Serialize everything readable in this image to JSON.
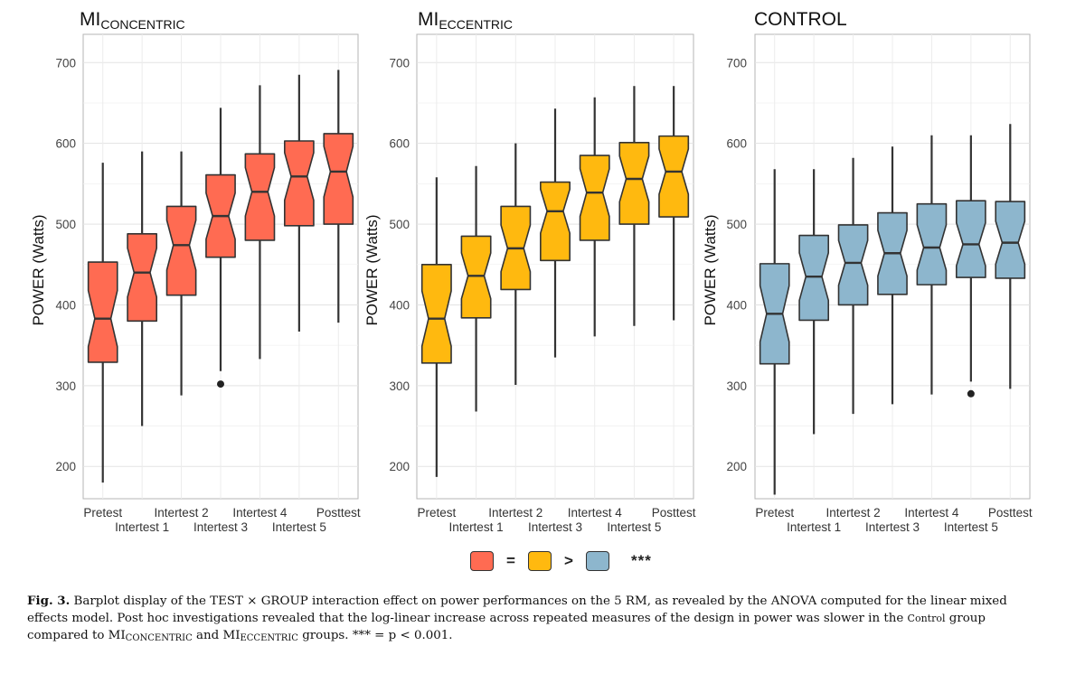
{
  "chart_data": [
    {
      "type": "boxplot",
      "title": "MI",
      "title_sub": "CONCENTRIC",
      "ylabel": "POWER (Watts)",
      "ylim": [
        160,
        735
      ],
      "yticks": [
        "200",
        "300",
        "400",
        "500",
        "600",
        "700"
      ],
      "color": "#FF6B52",
      "categories": [
        "Pretest",
        "Intertest 1",
        "Intertest 2",
        "Intertest 3",
        "Intertest 4",
        "Intertest 5",
        "Posttest"
      ],
      "boxes": [
        {
          "min": 180,
          "q1": 329,
          "median": 383,
          "q3": 453,
          "max": 576,
          "outliers": []
        },
        {
          "min": 250,
          "q1": 380,
          "median": 440,
          "q3": 488,
          "max": 590,
          "outliers": []
        },
        {
          "min": 288,
          "q1": 412,
          "median": 474,
          "q3": 522,
          "max": 590,
          "outliers": []
        },
        {
          "min": 318,
          "q1": 459,
          "median": 510,
          "q3": 561,
          "max": 644,
          "outliers": [
            302
          ]
        },
        {
          "min": 333,
          "q1": 480,
          "median": 540,
          "q3": 587,
          "max": 672,
          "outliers": []
        },
        {
          "min": 367,
          "q1": 498,
          "median": 559,
          "q3": 603,
          "max": 685,
          "outliers": []
        },
        {
          "min": 378,
          "q1": 500,
          "median": 565,
          "q3": 612,
          "max": 691,
          "outliers": []
        }
      ]
    },
    {
      "type": "boxplot",
      "title": "MI",
      "title_sub": "ECCENTRIC",
      "ylabel": "POWER (Watts)",
      "ylim": [
        160,
        735
      ],
      "yticks": [
        "200",
        "300",
        "400",
        "500",
        "600",
        "700"
      ],
      "color": "#FFB90F",
      "categories": [
        "Pretest",
        "Intertest 1",
        "Intertest 2",
        "Intertest 3",
        "Intertest 4",
        "Intertest 5",
        "Posttest"
      ],
      "boxes": [
        {
          "min": 187,
          "q1": 328,
          "median": 383,
          "q3": 450,
          "max": 558,
          "outliers": []
        },
        {
          "min": 268,
          "q1": 384,
          "median": 436,
          "q3": 485,
          "max": 572,
          "outliers": []
        },
        {
          "min": 301,
          "q1": 419,
          "median": 470,
          "q3": 522,
          "max": 600,
          "outliers": []
        },
        {
          "min": 335,
          "q1": 455,
          "median": 516,
          "q3": 552,
          "max": 643,
          "outliers": []
        },
        {
          "min": 361,
          "q1": 480,
          "median": 539,
          "q3": 585,
          "max": 657,
          "outliers": []
        },
        {
          "min": 374,
          "q1": 500,
          "median": 556,
          "q3": 601,
          "max": 671,
          "outliers": []
        },
        {
          "min": 381,
          "q1": 509,
          "median": 565,
          "q3": 609,
          "max": 671,
          "outliers": []
        }
      ]
    },
    {
      "type": "boxplot",
      "title": "CONTROL",
      "title_sub": "",
      "ylabel": "POWER (Watts)",
      "ylim": [
        160,
        735
      ],
      "yticks": [
        "200",
        "300",
        "400",
        "500",
        "600",
        "700"
      ],
      "color": "#8DB6CD",
      "categories": [
        "Pretest",
        "Intertest 1",
        "Intertest 2",
        "Intertest 3",
        "Intertest 4",
        "Intertest 5",
        "Posttest"
      ],
      "boxes": [
        {
          "min": 165,
          "q1": 327,
          "median": 389,
          "q3": 451,
          "max": 568,
          "outliers": []
        },
        {
          "min": 240,
          "q1": 381,
          "median": 435,
          "q3": 486,
          "max": 568,
          "outliers": []
        },
        {
          "min": 265,
          "q1": 400,
          "median": 452,
          "q3": 499,
          "max": 582,
          "outliers": []
        },
        {
          "min": 277,
          "q1": 413,
          "median": 464,
          "q3": 514,
          "max": 596,
          "outliers": []
        },
        {
          "min": 289,
          "q1": 425,
          "median": 471,
          "q3": 525,
          "max": 610,
          "outliers": []
        },
        {
          "min": 305,
          "q1": 434,
          "median": 475,
          "q3": 529,
          "max": 610,
          "outliers": [
            290
          ]
        },
        {
          "min": 296,
          "q1": 433,
          "median": 477,
          "q3": 528,
          "max": 624,
          "outliers": []
        }
      ]
    }
  ],
  "legend": {
    "colors": [
      "#FF6B52",
      "#FFB90F",
      "#8DB6CD"
    ],
    "symbols": [
      "=",
      ">"
    ],
    "significance": "***"
  },
  "caption": {
    "label": "Fig. 3.",
    "text_1": "Barplot display of the TEST × GROUP interaction effect on power performances on the 5 RM, as revealed by the ANOVA computed for the linear mixed effects model. Post hoc investigations revealed that the log-linear increase across repeated measures of the design in power was slower in the",
    "control_sc": "Control",
    "text_2": "group compared to MI",
    "sub_1": "CONCENTRIC",
    "text_3": "and MI",
    "sub_2": "ECCENTRIC",
    "text_4": "groups. *** = p < 0.001."
  }
}
